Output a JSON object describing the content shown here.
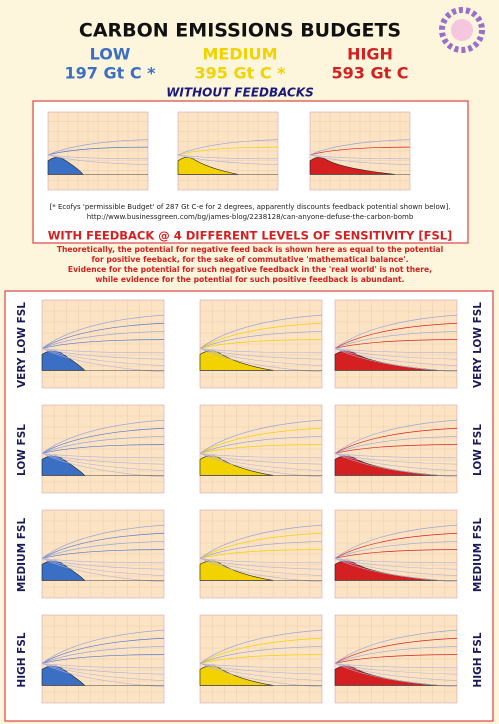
{
  "header": {
    "title": "CARBON EMISSIONS BUDGETS",
    "budgets": [
      {
        "level": "LOW",
        "amount": "197 Gt C *",
        "color": "#3a6fc4"
      },
      {
        "level": "MEDIUM",
        "amount": "395 Gt C *",
        "color": "#f2d200"
      },
      {
        "level": "HIGH",
        "amount": "593 Gt C",
        "color": "#d42020"
      }
    ],
    "subtitle": "WITHOUT FEEDBACKS"
  },
  "notes": [
    "[* Ecofys 'permissible Budget' of 287 Gt C-e for 2 degrees, apparently discounts feedback potential shown below].",
    "http://www.businessgreen.com/bg/james-blog/2238128/can-anyone-defuse-the-carbon-bomb"
  ],
  "feedback": {
    "heading": "WITH FEEDBACK @ 4 DIFFERENT LEVELS OF SENSITIVITY [FSL]",
    "paragraph": [
      "Theoretically, the potential for negative feed back is shown here as equal to the potential",
      "for positive feeback, for the sake of commutative 'mathematical balance'.",
      "Evidence for the potential for such negative feedback in the 'real world' is not there,",
      "while evidence for the potential for such positive feedback is abundant."
    ]
  },
  "rows": [
    {
      "label": "VERY LOW FSL"
    },
    {
      "label": "LOW FSL"
    },
    {
      "label": "MEDIUM FSL"
    },
    {
      "label": "HIGH FSL"
    }
  ]
}
